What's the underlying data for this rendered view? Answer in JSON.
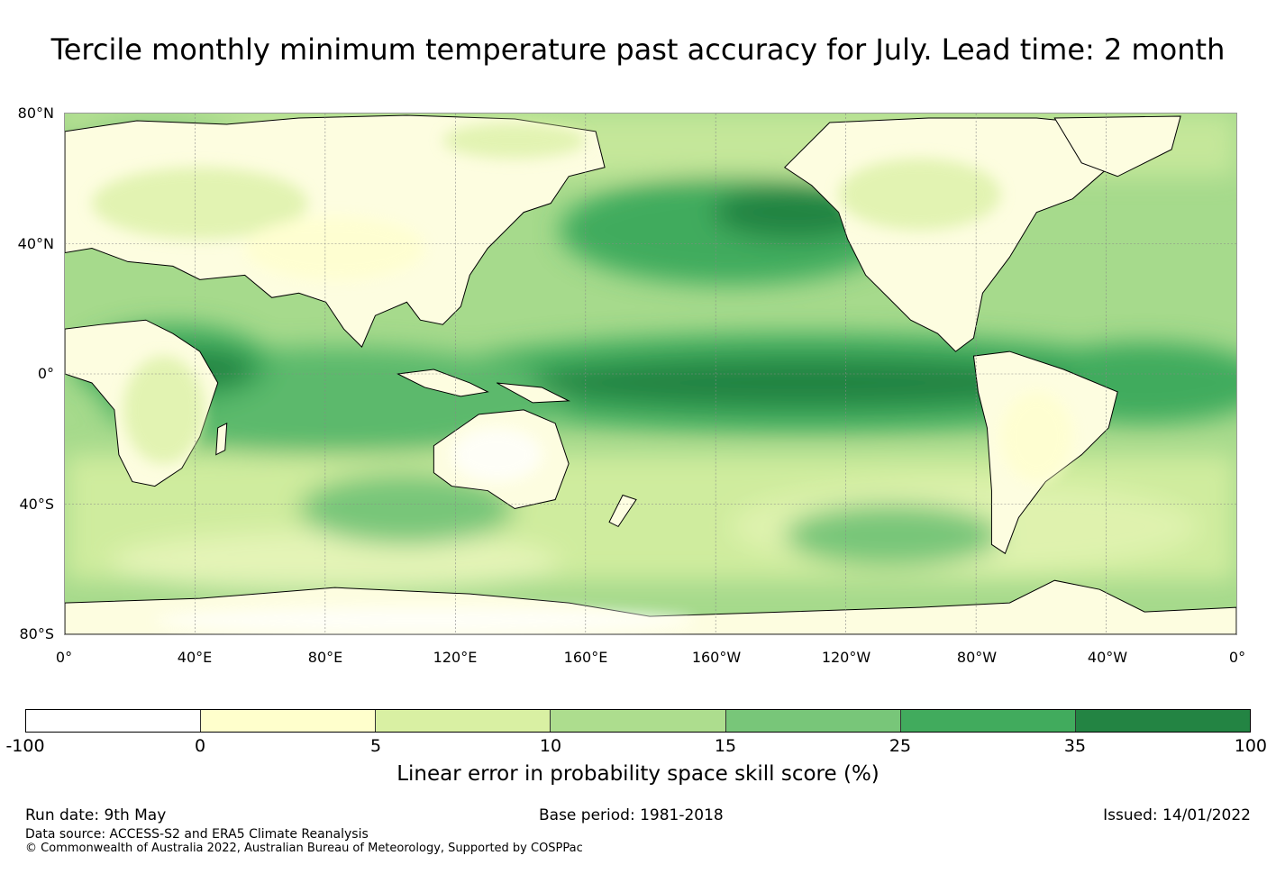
{
  "title": "Tercile monthly minimum temperature past accuracy for July. Lead time: 2 month",
  "map": {
    "lat_labels": [
      "80°N",
      "40°N",
      "0°",
      "40°S",
      "80°S"
    ],
    "lon_labels": [
      "0°",
      "40°E",
      "80°E",
      "120°E",
      "160°E",
      "160°W",
      "120°W",
      "80°W",
      "40°W",
      "0°"
    ],
    "land_color": "#fdfde0",
    "ocean_base_color": "#a6da8c"
  },
  "colorbar": {
    "ticks": [
      "-100",
      "0",
      "5",
      "10",
      "15",
      "25",
      "35",
      "100"
    ],
    "colors": [
      "#ffffff",
      "#ffffcc",
      "#d9f0a3",
      "#addd8e",
      "#78c679",
      "#41ab5d",
      "#238443"
    ],
    "label": "Linear error in probability space skill score (%)"
  },
  "footer": {
    "run_date": "Run date: 9th May",
    "base_period": "Base period: 1981-2018",
    "issued": "Issued: 14/01/2022",
    "data_source": "Data source: ACCESS-S2 and ERA5 Climate Reanalysis",
    "copyright": "© Commonwealth of Australia 2022, Australian Bureau of Meteorology, Supported by COSPPac"
  }
}
